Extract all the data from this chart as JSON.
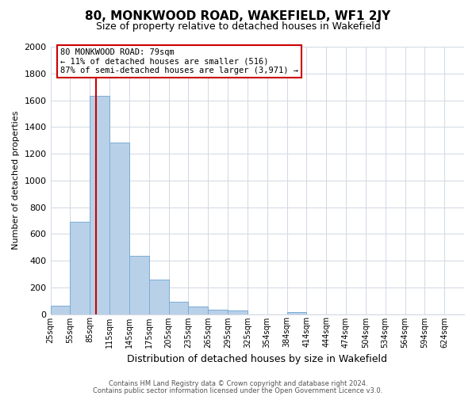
{
  "title": "80, MONKWOOD ROAD, WAKEFIELD, WF1 2JY",
  "subtitle": "Size of property relative to detached houses in Wakefield",
  "xlabel": "Distribution of detached houses by size in Wakefield",
  "ylabel": "Number of detached properties",
  "categories": [
    "25sqm",
    "55sqm",
    "85sqm",
    "115sqm",
    "145sqm",
    "175sqm",
    "205sqm",
    "235sqm",
    "265sqm",
    "295sqm",
    "325sqm",
    "354sqm",
    "384sqm",
    "414sqm",
    "444sqm",
    "474sqm",
    "504sqm",
    "534sqm",
    "564sqm",
    "594sqm",
    "624sqm"
  ],
  "values": [
    65,
    690,
    1635,
    1285,
    435,
    255,
    90,
    55,
    30,
    25,
    0,
    0,
    15,
    0,
    0,
    0,
    0,
    0,
    0,
    0,
    0
  ],
  "bar_color": "#b8d0e8",
  "bar_edge_color": "#7aadd4",
  "property_line_label": "80 MONKWOOD ROAD: 79sqm",
  "annotation_line1": "← 11% of detached houses are smaller (516)",
  "annotation_line2": "87% of semi-detached houses are larger (3,971) →",
  "annotation_box_color": "#ffffff",
  "annotation_box_edge": "#cc0000",
  "vline_color": "#cc0000",
  "ylim": [
    0,
    2000
  ],
  "yticks": [
    0,
    200,
    400,
    600,
    800,
    1000,
    1200,
    1400,
    1600,
    1800,
    2000
  ],
  "footer_line1": "Contains HM Land Registry data © Crown copyright and database right 2024.",
  "footer_line2": "Contains public sector information licensed under the Open Government Licence v3.0.",
  "background_color": "#ffffff",
  "grid_color": "#d0d8e4"
}
